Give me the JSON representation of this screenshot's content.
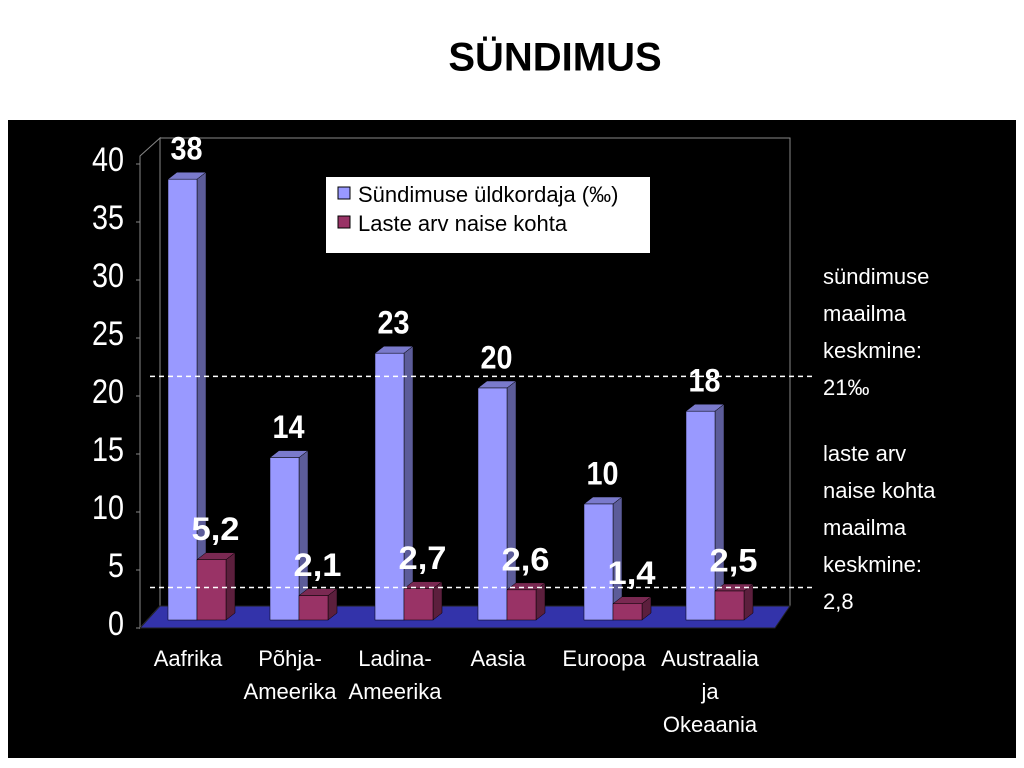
{
  "chart_data": {
    "type": "bar3d",
    "title": "SÜNDIMUS",
    "categories": [
      [
        "Aafrika"
      ],
      [
        "Põhja-",
        "Ameerika"
      ],
      [
        "Ladina-",
        "Ameerika"
      ],
      [
        "Aasia"
      ],
      [
        "Euroopa"
      ],
      [
        "Austraalia",
        "ja",
        "Okeaania"
      ]
    ],
    "series": [
      {
        "name": "Sündimuse üldkordaja (‰)",
        "color": "#9999ff",
        "values": [
          38,
          14,
          23,
          20,
          10,
          18
        ]
      },
      {
        "name": "Laste arv naise kohta",
        "color": "#993366",
        "values": [
          5.2,
          2.1,
          2.7,
          2.6,
          1.4,
          2.5
        ],
        "value_labels": [
          "5,2",
          "2,1",
          "2,7",
          "2,6",
          "1,4",
          "2,5"
        ]
      }
    ],
    "ylim": [
      0,
      40
    ],
    "yticks": [
      0,
      5,
      10,
      15,
      20,
      25,
      30,
      35,
      40
    ],
    "annotations": [
      {
        "value": 21,
        "label": [
          "sündimuse",
          "maailma",
          "keskmine:",
          "21‰"
        ]
      },
      {
        "value": 2.8,
        "label": [
          "laste arv",
          "naise kohta",
          "maailma",
          "keskmine:",
          "2,8"
        ]
      }
    ]
  }
}
